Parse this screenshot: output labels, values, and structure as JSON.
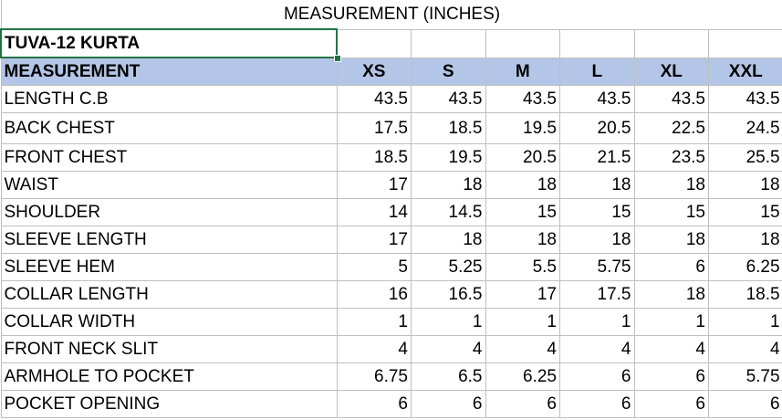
{
  "sheet": {
    "title": "MEASUREMENT (INCHES)",
    "product": "TUVA-12 KURTA",
    "header": {
      "label": "MEASUREMENT",
      "sizes": [
        "XS",
        "S",
        "M",
        "L",
        "XL",
        "XXL"
      ]
    },
    "rows": [
      {
        "label": "LENGTH C.B",
        "values": [
          "43.5",
          "43.5",
          "43.5",
          "43.5",
          "43.5",
          "43.5"
        ]
      },
      {
        "label": "BACK CHEST",
        "values": [
          "17.5",
          "18.5",
          "19.5",
          "20.5",
          "22.5",
          "24.5"
        ]
      },
      {
        "label": "FRONT CHEST",
        "values": [
          "18.5",
          "19.5",
          "20.5",
          "21.5",
          "23.5",
          "25.5"
        ]
      },
      {
        "label": "WAIST",
        "values": [
          "17",
          "18",
          "18",
          "18",
          "18",
          "18"
        ]
      },
      {
        "label": "SHOULDER",
        "values": [
          "14",
          "14.5",
          "15",
          "15",
          "15",
          "15"
        ]
      },
      {
        "label": "SLEEVE LENGTH",
        "values": [
          "17",
          "18",
          "18",
          "18",
          "18",
          "18"
        ]
      },
      {
        "label": "SLEEVE HEM",
        "values": [
          "5",
          "5.25",
          "5.5",
          "5.75",
          "6",
          "6.25"
        ]
      },
      {
        "label": "COLLAR LENGTH",
        "values": [
          "16",
          "16.5",
          "17",
          "17.5",
          "18",
          "18.5"
        ]
      },
      {
        "label": "COLLAR WIDTH",
        "values": [
          "1",
          "1",
          "1",
          "1",
          "1",
          "1"
        ]
      },
      {
        "label": "FRONT NECK SLIT",
        "values": [
          "4",
          "4",
          "4",
          "4",
          "4",
          "4"
        ]
      },
      {
        "label": "ARMHOLE TO POCKET",
        "values": [
          "6.75",
          "6.5",
          "6.25",
          "6",
          "6",
          "5.75"
        ]
      },
      {
        "label": "POCKET OPENING",
        "values": [
          "6",
          "6",
          "6",
          "6",
          "6",
          "6"
        ]
      }
    ],
    "colors": {
      "header_fill": "#b4c6e7",
      "selection_border": "#217346",
      "gridline": "#bfbfbf"
    }
  }
}
